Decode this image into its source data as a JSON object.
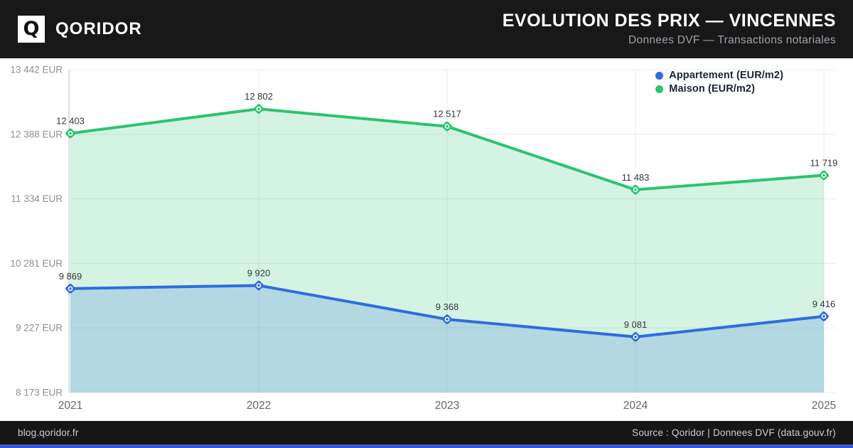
{
  "header": {
    "logo_letter": "Q",
    "brand": "QORIDOR",
    "title": "EVOLUTION DES PRIX — VINCENNES",
    "subtitle": "Donnees DVF — Transactions notariales"
  },
  "footer": {
    "left": "blog.qoridor.fr",
    "right": "Source : Qoridor | Donnees DVF (data.gouv.fr)"
  },
  "colors": {
    "header_bg": "#181818",
    "footer_bg": "#161616",
    "accent_strip": "#3a57d8",
    "appartement": "#2e6ce2",
    "maison": "#2bc46e",
    "grid": "#ececec",
    "axis_line": "#d8d8d8",
    "y_tick_text": "#8a8f96",
    "x_tick_text": "#63676d",
    "data_label_text": "#33373d"
  },
  "chart_data": {
    "type": "line",
    "title": "Evolution des prix — Vincennes",
    "x": [
      "2021",
      "2022",
      "2023",
      "2024",
      "2025"
    ],
    "series": [
      {
        "name": "Appartement (EUR/m2)",
        "color": "#2e6ce2",
        "fill": "rgba(46,108,226,0.20)",
        "values": [
          9869,
          9920,
          9368,
          9081,
          9416
        ]
      },
      {
        "name": "Maison (EUR/m2)",
        "color": "#2bc46e",
        "fill": "rgba(43,196,110,0.20)",
        "values": [
          12403,
          12802,
          12517,
          11483,
          11719
        ]
      }
    ],
    "y_ticks": [
      13442,
      12388,
      11334,
      10281,
      9227,
      8173
    ],
    "y_tick_suffix": " EUR",
    "ylim": [
      8173,
      13442
    ],
    "grid": true,
    "area_fill": true,
    "legend_position": "top-right"
  }
}
